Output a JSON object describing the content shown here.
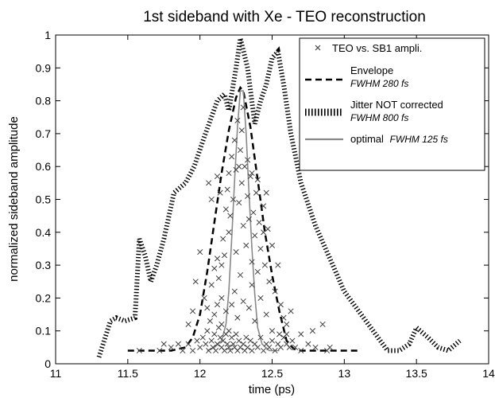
{
  "chart_data": {
    "type": "line",
    "title": "1st sideband with Xe - TEO reconstruction",
    "xlabel": "time (ps)",
    "ylabel": "normalized sideband amplitude",
    "xlim": [
      11,
      14
    ],
    "ylim": [
      0,
      1
    ],
    "xticks": [
      "11",
      "11.5",
      "12",
      "12.5",
      "13",
      "13.5",
      "14"
    ],
    "yticks": [
      "0",
      "0.1",
      "0.2",
      "0.3",
      "0.4",
      "0.5",
      "0.6",
      "0.7",
      "0.8",
      "0.9",
      "1"
    ],
    "grid": false,
    "legend_position": "top-right",
    "legend": [
      {
        "label": "TEO vs. SB1 ampli.",
        "style": "x-marker"
      },
      {
        "label": "Envelope",
        "sub": "FWHM 280 fs",
        "style": "dashed"
      },
      {
        "label": "Jitter NOT corrected",
        "sub": "FWHM 800 fs",
        "style": "dotted"
      },
      {
        "label": "optimal",
        "sub": "FWHM 125 fs",
        "style": "solid-gray",
        "inline_sub": true
      }
    ],
    "series": [
      {
        "name": "Envelope",
        "style": "dashed",
        "color": "#000000",
        "x": [
          11.5,
          11.6,
          11.7,
          11.8,
          11.85,
          11.9,
          11.95,
          12.0,
          12.05,
          12.1,
          12.15,
          12.2,
          12.25,
          12.28,
          12.3,
          12.35,
          12.4,
          12.45,
          12.5,
          12.55,
          12.6,
          12.65,
          12.7,
          12.8,
          12.9,
          13.0,
          13.1
        ],
        "y": [
          0.04,
          0.04,
          0.04,
          0.04,
          0.045,
          0.05,
          0.08,
          0.15,
          0.28,
          0.43,
          0.58,
          0.71,
          0.81,
          0.84,
          0.83,
          0.72,
          0.56,
          0.4,
          0.27,
          0.16,
          0.07,
          0.045,
          0.04,
          0.04,
          0.04,
          0.04,
          0.04
        ]
      },
      {
        "name": "Jitter NOT corrected",
        "style": "dotted",
        "color": "#000000",
        "x": [
          11.3,
          11.38,
          11.42,
          11.48,
          11.55,
          11.58,
          11.62,
          11.66,
          11.7,
          11.75,
          11.82,
          11.9,
          11.96,
          12.03,
          12.12,
          12.17,
          12.2,
          12.25,
          12.28,
          12.33,
          12.38,
          12.42,
          12.46,
          12.5,
          12.54,
          12.58,
          12.63,
          12.7,
          12.8,
          12.9,
          13.0,
          13.1,
          13.2,
          13.3,
          13.38,
          13.45,
          13.5,
          13.58,
          13.65,
          13.72,
          13.8
        ],
        "y": [
          0.02,
          0.13,
          0.14,
          0.13,
          0.14,
          0.38,
          0.33,
          0.25,
          0.3,
          0.38,
          0.52,
          0.55,
          0.6,
          0.69,
          0.8,
          0.82,
          0.77,
          0.9,
          0.99,
          0.9,
          0.73,
          0.8,
          0.85,
          0.93,
          0.95,
          0.85,
          0.7,
          0.55,
          0.42,
          0.32,
          0.22,
          0.16,
          0.1,
          0.04,
          0.04,
          0.06,
          0.11,
          0.08,
          0.05,
          0.04,
          0.07
        ]
      },
      {
        "name": "optimal",
        "style": "solid",
        "color": "#888888",
        "x": [
          12.05,
          12.1,
          12.15,
          12.18,
          12.2,
          12.22,
          12.24,
          12.26,
          12.28,
          12.3,
          12.32,
          12.34,
          12.36,
          12.38,
          12.4,
          12.43,
          12.48,
          12.55
        ],
        "y": [
          0.04,
          0.05,
          0.07,
          0.12,
          0.22,
          0.38,
          0.56,
          0.72,
          0.83,
          0.83,
          0.7,
          0.52,
          0.35,
          0.21,
          0.11,
          0.06,
          0.04,
          0.04
        ]
      }
    ],
    "scatter": {
      "name": "TEO vs. SB1 ampli.",
      "marker": "x",
      "color": "#404040",
      "points": [
        [
          11.58,
          0.04
        ],
        [
          11.72,
          0.04
        ],
        [
          11.8,
          0.05
        ],
        [
          11.88,
          0.04
        ],
        [
          11.92,
          0.06
        ],
        [
          11.95,
          0.04
        ],
        [
          11.98,
          0.07
        ],
        [
          12.0,
          0.05
        ],
        [
          12.02,
          0.08
        ],
        [
          12.04,
          0.06
        ],
        [
          12.05,
          0.1
        ],
        [
          12.06,
          0.04
        ],
        [
          12.07,
          0.13
        ],
        [
          12.08,
          0.07
        ],
        [
          12.09,
          0.05
        ],
        [
          12.1,
          0.09
        ],
        [
          12.1,
          0.15
        ],
        [
          12.11,
          0.04
        ],
        [
          12.12,
          0.06
        ],
        [
          12.13,
          0.11
        ],
        [
          12.14,
          0.08
        ],
        [
          12.15,
          0.05
        ],
        [
          12.15,
          0.12
        ],
        [
          12.16,
          0.07
        ],
        [
          12.17,
          0.04
        ],
        [
          12.18,
          0.09
        ],
        [
          12.19,
          0.06
        ],
        [
          12.2,
          0.05
        ],
        [
          12.2,
          0.1
        ],
        [
          12.21,
          0.04
        ],
        [
          12.22,
          0.08
        ],
        [
          12.23,
          0.06
        ],
        [
          12.24,
          0.05
        ],
        [
          12.25,
          0.09
        ],
        [
          12.26,
          0.04
        ],
        [
          12.27,
          0.07
        ],
        [
          12.28,
          0.05
        ],
        [
          12.3,
          0.06
        ],
        [
          12.31,
          0.04
        ],
        [
          12.32,
          0.08
        ],
        [
          12.33,
          0.05
        ],
        [
          12.35,
          0.07
        ],
        [
          12.36,
          0.04
        ],
        [
          12.38,
          0.06
        ],
        [
          12.4,
          0.05
        ],
        [
          12.42,
          0.08
        ],
        [
          12.44,
          0.04
        ],
        [
          12.46,
          0.06
        ],
        [
          12.48,
          0.05
        ],
        [
          12.5,
          0.07
        ],
        [
          12.52,
          0.04
        ],
        [
          12.54,
          0.06
        ],
        [
          12.56,
          0.05
        ],
        [
          12.58,
          0.08
        ],
        [
          12.6,
          0.06
        ],
        [
          12.62,
          0.05
        ],
        [
          12.64,
          0.07
        ],
        [
          12.66,
          0.05
        ],
        [
          12.7,
          0.04
        ],
        [
          12.75,
          0.06
        ],
        [
          12.8,
          0.05
        ],
        [
          12.88,
          0.04
        ],
        [
          12.03,
          0.2
        ],
        [
          12.05,
          0.17
        ],
        [
          12.08,
          0.24
        ],
        [
          12.1,
          0.29
        ],
        [
          12.12,
          0.32
        ],
        [
          12.13,
          0.26
        ],
        [
          12.15,
          0.3
        ],
        [
          12.16,
          0.38
        ],
        [
          12.17,
          0.33
        ],
        [
          12.18,
          0.47
        ],
        [
          12.19,
          0.53
        ],
        [
          12.2,
          0.4
        ],
        [
          12.2,
          0.58
        ],
        [
          12.21,
          0.45
        ],
        [
          12.22,
          0.63
        ],
        [
          12.23,
          0.5
        ],
        [
          12.24,
          0.68
        ],
        [
          12.25,
          0.59
        ],
        [
          12.25,
          0.34
        ],
        [
          12.26,
          0.74
        ],
        [
          12.27,
          0.49
        ],
        [
          12.28,
          0.65
        ],
        [
          12.28,
          0.27
        ],
        [
          12.29,
          0.55
        ],
        [
          12.3,
          0.42
        ],
        [
          12.31,
          0.6
        ],
        [
          12.32,
          0.36
        ],
        [
          12.33,
          0.51
        ],
        [
          12.34,
          0.44
        ],
        [
          12.35,
          0.57
        ],
        [
          12.36,
          0.31
        ],
        [
          12.37,
          0.46
        ],
        [
          12.38,
          0.39
        ],
        [
          12.39,
          0.52
        ],
        [
          12.4,
          0.28
        ],
        [
          12.41,
          0.43
        ],
        [
          12.42,
          0.35
        ],
        [
          12.44,
          0.48
        ],
        [
          12.45,
          0.3
        ],
        [
          12.47,
          0.41
        ],
        [
          12.48,
          0.25
        ],
        [
          12.5,
          0.36
        ],
        [
          12.52,
          0.22
        ],
        [
          12.54,
          0.3
        ],
        [
          12.56,
          0.18
        ],
        [
          12.58,
          0.14
        ],
        [
          12.6,
          0.12
        ],
        [
          12.63,
          0.16
        ],
        [
          12.0,
          0.34
        ],
        [
          11.97,
          0.25
        ],
        [
          11.95,
          0.16
        ],
        [
          11.92,
          0.12
        ],
        [
          12.06,
          0.55
        ],
        [
          12.08,
          0.5
        ],
        [
          12.12,
          0.57
        ],
        [
          12.14,
          0.52
        ],
        [
          12.27,
          0.6
        ],
        [
          12.29,
          0.71
        ],
        [
          12.3,
          0.78
        ],
        [
          12.33,
          0.62
        ],
        [
          12.36,
          0.58
        ],
        [
          12.4,
          0.56
        ],
        [
          12.44,
          0.4
        ],
        [
          12.46,
          0.52
        ],
        [
          12.22,
          0.18
        ],
        [
          12.24,
          0.22
        ],
        [
          12.26,
          0.14
        ],
        [
          12.3,
          0.19
        ],
        [
          12.34,
          0.17
        ],
        [
          12.38,
          0.13
        ],
        [
          12.42,
          0.2
        ],
        [
          12.46,
          0.15
        ],
        [
          12.15,
          0.2
        ],
        [
          12.18,
          0.16
        ],
        [
          12.12,
          0.18
        ],
        [
          12.36,
          0.24
        ],
        [
          12.5,
          0.1
        ],
        [
          12.55,
          0.09
        ],
        [
          12.6,
          0.09
        ],
        [
          12.7,
          0.09
        ],
        [
          12.78,
          0.1
        ],
        [
          12.85,
          0.12
        ],
        [
          12.9,
          0.05
        ],
        [
          11.75,
          0.06
        ],
        [
          11.85,
          0.06
        ]
      ]
    }
  }
}
